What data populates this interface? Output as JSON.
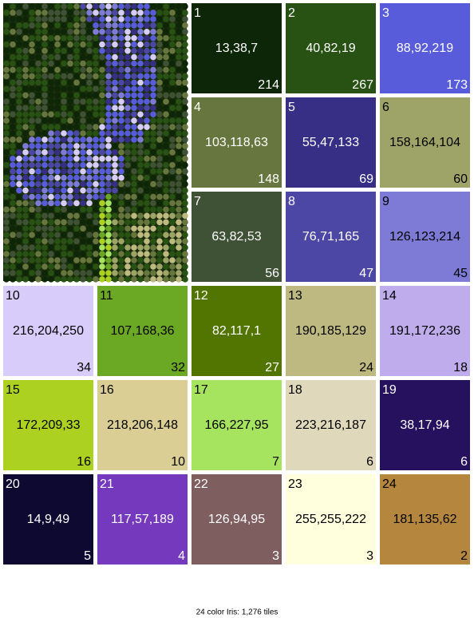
{
  "swatches": [
    {
      "index": 1,
      "rgb": "13,38,7",
      "count": 214
    },
    {
      "index": 2,
      "rgb": "40,82,19",
      "count": 267
    },
    {
      "index": 3,
      "rgb": "88,92,219",
      "count": 173
    },
    {
      "index": 4,
      "rgb": "103,118,63",
      "count": 148
    },
    {
      "index": 5,
      "rgb": "55,47,133",
      "count": 69
    },
    {
      "index": 6,
      "rgb": "158,164,104",
      "count": 60
    },
    {
      "index": 7,
      "rgb": "63,82,53",
      "count": 56
    },
    {
      "index": 8,
      "rgb": "76,71,165",
      "count": 47
    },
    {
      "index": 9,
      "rgb": "126,123,214",
      "count": 45
    },
    {
      "index": 10,
      "rgb": "216,204,250",
      "count": 34
    },
    {
      "index": 11,
      "rgb": "107,168,36",
      "count": 32
    },
    {
      "index": 12,
      "rgb": "82,117,1",
      "count": 27
    },
    {
      "index": 13,
      "rgb": "190,185,129",
      "count": 24
    },
    {
      "index": 14,
      "rgb": "191,172,236",
      "count": 18
    },
    {
      "index": 15,
      "rgb": "172,209,33",
      "count": 16
    },
    {
      "index": 16,
      "rgb": "218,206,148",
      "count": 10
    },
    {
      "index": 17,
      "rgb": "166,227,95",
      "count": 7
    },
    {
      "index": 18,
      "rgb": "223,216,187",
      "count": 6
    },
    {
      "index": 19,
      "rgb": "38,17,94",
      "count": 6
    },
    {
      "index": 20,
      "rgb": "14,9,49",
      "count": 5
    },
    {
      "index": 21,
      "rgb": "117,57,189",
      "count": 4
    },
    {
      "index": 22,
      "rgb": "126,94,95",
      "count": 3
    },
    {
      "index": 23,
      "rgb": "255,255,222",
      "count": 3
    },
    {
      "index": 24,
      "rgb": "181,135,62",
      "count": 2
    }
  ],
  "caption": "24 color Iris: 1,276 tiles"
}
